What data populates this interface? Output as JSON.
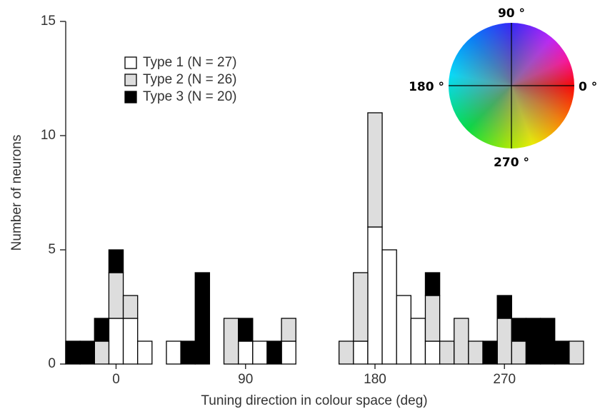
{
  "chart_data": {
    "type": "histogram",
    "xlabel": "Tuning direction in colour space (deg)",
    "ylabel": "Number of neurons",
    "bins": [
      -35,
      -25,
      -15,
      -5,
      5,
      15,
      25,
      35,
      45,
      55,
      65,
      75,
      85,
      95,
      105,
      115,
      125,
      135,
      145,
      155,
      165,
      175,
      185,
      195,
      205,
      215,
      225,
      235,
      245,
      255,
      265,
      275,
      285,
      295,
      305,
      315,
      325
    ],
    "series": [
      {
        "name": "Type 1 (N = 27)",
        "color": "#ffffff",
        "values": [
          0,
          0,
          0,
          2,
          2,
          1,
          0,
          1,
          0,
          0,
          0,
          0,
          1,
          1,
          0,
          1,
          0,
          0,
          0,
          0,
          1,
          6,
          5,
          3,
          2,
          1,
          0,
          0,
          0,
          0,
          0,
          0,
          0,
          0,
          0,
          0
        ]
      },
      {
        "name": "Type 2 (N = 26)",
        "color": "#dddddd",
        "values": [
          0,
          0,
          1,
          2,
          1,
          0,
          0,
          0,
          0,
          0,
          0,
          2,
          0,
          0,
          0,
          1,
          0,
          0,
          0,
          1,
          3,
          5,
          0,
          0,
          0,
          2,
          1,
          2,
          1,
          0,
          2,
          1,
          0,
          0,
          0,
          1
        ]
      },
      {
        "name": "Type 3 (N = 20)",
        "color": "#000000",
        "values": [
          1,
          1,
          1,
          1,
          0,
          0,
          0,
          0,
          1,
          4,
          0,
          0,
          1,
          0,
          1,
          0,
          0,
          0,
          0,
          0,
          0,
          0,
          0,
          0,
          0,
          1,
          0,
          0,
          0,
          1,
          1,
          1,
          2,
          2,
          1,
          0
        ]
      }
    ],
    "xlim": [
      -35,
      325
    ],
    "xticks": [
      0,
      90,
      180,
      270
    ],
    "ylim": [
      0,
      15
    ],
    "yticks": [
      0,
      5,
      10,
      15
    ],
    "legend": "upper left",
    "annotations": [
      "90 °",
      "0 °",
      "180 °",
      "270 °"
    ]
  }
}
